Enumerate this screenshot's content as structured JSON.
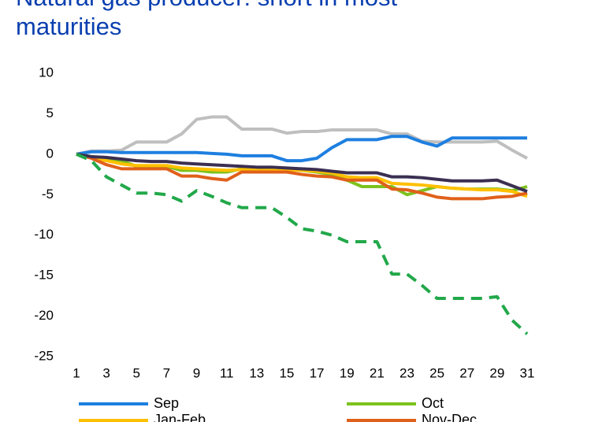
{
  "chart_data": {
    "type": "line",
    "title": "Natural gas producer: short in most maturities",
    "x": [
      1,
      2,
      3,
      4,
      5,
      6,
      7,
      8,
      9,
      10,
      11,
      12,
      13,
      14,
      15,
      16,
      17,
      18,
      19,
      20,
      21,
      22,
      23,
      24,
      25,
      26,
      27,
      28,
      29,
      30,
      31
    ],
    "xlim": [
      1,
      31
    ],
    "xticks": [
      1,
      3,
      5,
      7,
      9,
      11,
      13,
      15,
      17,
      19,
      21,
      23,
      25,
      27,
      29,
      31
    ],
    "ylim": [
      -25,
      10
    ],
    "yticks": [
      10,
      5,
      0,
      -5,
      -10,
      -15,
      -20,
      -25
    ],
    "grid": false,
    "series": [
      {
        "color": "#bfbfbf",
        "values": [
          0,
          0.4,
          0.4,
          0.5,
          1.5,
          1.5,
          1.5,
          2.5,
          4.3,
          4.6,
          4.6,
          3.1,
          3.1,
          3.1,
          2.6,
          2.8,
          2.8,
          3,
          3,
          3,
          3,
          2.5,
          2.5,
          1.6,
          1.5,
          1.5,
          1.5,
          1.5,
          1.6,
          0.5,
          -0.5
        ]
      },
      {
        "name": "Sep",
        "color": "#1e7fe0",
        "values": [
          0,
          0.3,
          0.3,
          0.2,
          0.2,
          0.2,
          0.2,
          0.2,
          0.2,
          0.1,
          0,
          -0.2,
          -0.2,
          -0.2,
          -0.8,
          -0.8,
          -0.5,
          0.8,
          1.8,
          1.8,
          1.8,
          2.2,
          2.2,
          1.5,
          1,
          2,
          2,
          2,
          2,
          2,
          2
        ]
      },
      {
        "name": "Oct",
        "color": "#7dc21e",
        "values": [
          0,
          -0.3,
          -0.5,
          -0.8,
          -1.5,
          -1.5,
          -1.5,
          -2,
          -2,
          -2.2,
          -2.2,
          -1.8,
          -1.8,
          -1.8,
          -1.8,
          -2,
          -2.2,
          -2.5,
          -3.2,
          -4,
          -4,
          -4,
          -5,
          -4.5,
          -4,
          -4.2,
          -4.3,
          -4.3,
          -4.3,
          -4.5,
          -4
        ]
      },
      {
        "name": "Jan-Feb",
        "color": "#ffc000",
        "values": [
          0,
          -0.4,
          -0.8,
          -1.2,
          -1.4,
          -1.4,
          -1.4,
          -1.7,
          -1.8,
          -1.9,
          -2,
          -1.9,
          -1.9,
          -1.9,
          -1.9,
          -2,
          -2.1,
          -2.3,
          -2.8,
          -2.9,
          -2.9,
          -3.6,
          -3.7,
          -3.8,
          -4,
          -4.2,
          -4.3,
          -4.4,
          -4.4,
          -4.6,
          -5.2
        ]
      },
      {
        "name": "Nov-Dec",
        "color": "#e0601a",
        "values": [
          0,
          -0.5,
          -1.3,
          -1.8,
          -1.8,
          -1.8,
          -1.8,
          -2.7,
          -2.7,
          -3,
          -3.2,
          -2.2,
          -2.2,
          -2.2,
          -2.2,
          -2.5,
          -2.7,
          -2.8,
          -3.2,
          -3.2,
          -3.2,
          -4.3,
          -4.4,
          -4.8,
          -5.3,
          -5.5,
          -5.5,
          -5.5,
          -5.3,
          -5.2,
          -4.8
        ]
      },
      {
        "color": "#3b2f52",
        "values": [
          0,
          -0.3,
          -0.4,
          -0.6,
          -0.8,
          -0.9,
          -0.9,
          -1.1,
          -1.2,
          -1.3,
          -1.4,
          -1.5,
          -1.6,
          -1.6,
          -1.7,
          -1.8,
          -1.9,
          -2.1,
          -2.3,
          -2.3,
          -2.3,
          -2.8,
          -2.8,
          -2.9,
          -3.1,
          -3.3,
          -3.3,
          -3.3,
          -3.2,
          -3.9,
          -4.6
        ]
      },
      {
        "color": "#22a84a",
        "dashed": true,
        "values": [
          0,
          -0.8,
          -2.8,
          -3.8,
          -4.8,
          -4.8,
          -5,
          -5.8,
          -4.5,
          -5.2,
          -6,
          -6.6,
          -6.6,
          -6.6,
          -7.8,
          -9.2,
          -9.5,
          -10,
          -10.8,
          -10.8,
          -10.8,
          -14.8,
          -14.8,
          -16.2,
          -17.8,
          -17.8,
          -17.8,
          -17.8,
          -17.6,
          -20.5,
          -22.2
        ]
      }
    ]
  }
}
